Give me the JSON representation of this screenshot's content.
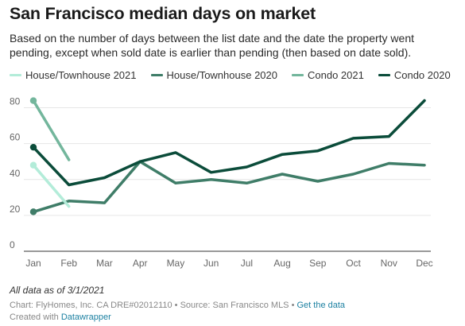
{
  "title": "San Francisco median days on market",
  "subtitle": "Based on the number of days between the list date and the date the property went pending, except when sold date is earlier than pending (then based on date sold).",
  "note": "All data as of 3/1/2021",
  "footer": {
    "line1_prefix": "Chart: FlyHomes, Inc. CA DRE#02012110 • Source: San Francisco MLS • ",
    "get_data": "Get the data",
    "created_prefix": "Created with ",
    "datawrapper": "Datawrapper"
  },
  "chart_data": {
    "type": "line",
    "title": "San Francisco median days on market",
    "categories": [
      "Jan",
      "Feb",
      "Mar",
      "Apr",
      "May",
      "Jun",
      "Jul",
      "Aug",
      "Sep",
      "Oct",
      "Nov",
      "Dec"
    ],
    "ylim": [
      0,
      90
    ],
    "yticks": [
      0,
      20,
      40,
      60,
      80
    ],
    "grid": true,
    "legend_position": "top",
    "series": [
      {
        "name": "House/Townhouse 2021",
        "color": "#b3ecd9",
        "values": [
          48,
          25,
          null,
          null,
          null,
          null,
          null,
          null,
          null,
          null,
          null,
          null
        ]
      },
      {
        "name": "House/Townhouse 2020",
        "color": "#3f7d68",
        "values": [
          22,
          28,
          27,
          50,
          38,
          40,
          38,
          43,
          39,
          43,
          49,
          48
        ]
      },
      {
        "name": "Condo 2021",
        "color": "#73b69c",
        "values": [
          84,
          51,
          null,
          null,
          null,
          null,
          null,
          null,
          null,
          null,
          null,
          null
        ]
      },
      {
        "name": "Condo 2020",
        "color": "#0b4c3a",
        "values": [
          58,
          37,
          41,
          50,
          55,
          44,
          47,
          54,
          56,
          63,
          64,
          84
        ]
      }
    ]
  }
}
